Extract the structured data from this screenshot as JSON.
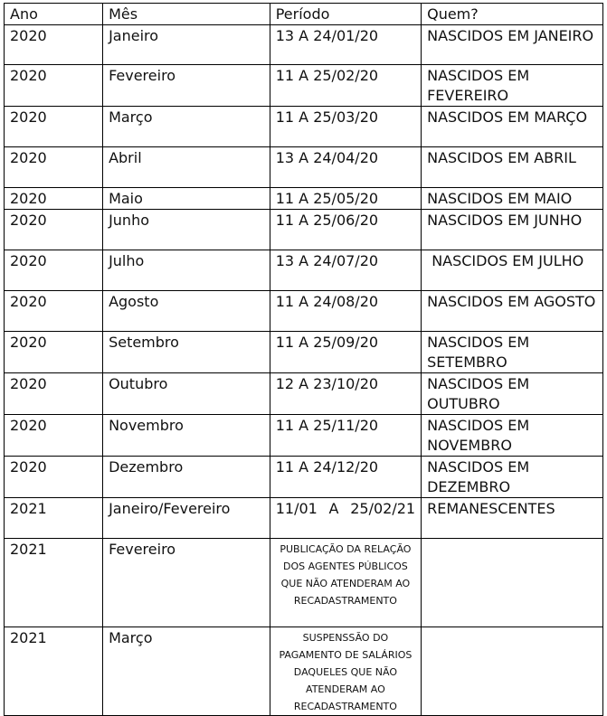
{
  "headers": [
    "Ano",
    "Mês",
    "Período",
    "Quem?"
  ],
  "rows": [
    [
      "2020",
      "Janeiro",
      "13 A 24/01/20",
      "NASCIDOS EM JANEIRO"
    ],
    [
      "2020",
      "Fevereiro",
      "11 A 25/02/20",
      "NASCIDOS EM FEVEREIRO"
    ],
    [
      "2020",
      "Março",
      "11 A 25/03/20",
      "NASCIDOS EM MARÇO"
    ],
    [
      "2020",
      "Abril",
      "13 A 24/04/20",
      "NASCIDOS EM ABRIL"
    ],
    [
      "2020",
      "Maio",
      "11 A 25/05/20",
      "NASCIDOS EM MAIO"
    ],
    [
      "2020",
      "Junho",
      "11 A 25/06/20",
      "NASCIDOS EM JUNHO"
    ],
    [
      "2020",
      "Julho",
      "13 A 24/07/20",
      " NASCIDOS EM JULHO"
    ],
    [
      "2020",
      "Agosto",
      "11 A 24/08/20",
      "NASCIDOS EM AGOSTO"
    ],
    [
      "2020",
      "Setembro",
      "11 A 25/09/20",
      "NASCIDOS EM SETEMBRO"
    ],
    [
      "2020",
      "Outubro",
      "12 A 23/10/20",
      "NASCIDOS EM OUTUBRO"
    ],
    [
      "2020",
      "Novembro",
      "11 A 25/11/20",
      "NASCIDOS EM NOVEMBRO"
    ],
    [
      "2020",
      "Dezembro",
      "11 A 24/12/20",
      "NASCIDOS EM DEZEMBRO"
    ],
    [
      "2021",
      "Janeiro/Fevereiro",
      "11/01 A 25/02/21",
      "REMANESCENTES"
    ],
    [
      "2021",
      "Fevereiro",
      "PUBLICAÇÃO DA RELAÇÃO DOS AGENTES PÚBLICOS QUE NÃO ATENDERAM AO RECADASTRAMENTO",
      ""
    ],
    [
      "2021",
      "Março",
      "SUSPENSSÃO DO PAGAMENTO DE SALÁRIOS DAQUELES QUE NÃO ATENDERAM AO RECADASTRAMENTO",
      ""
    ]
  ]
}
